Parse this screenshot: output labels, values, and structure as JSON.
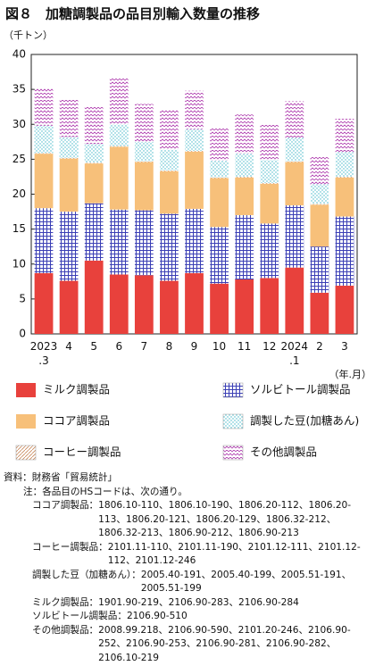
{
  "chart_data": {
    "type": "stacked-bar",
    "title": "図８　加糖調製品の品目別輸入数量の推移",
    "y_unit": "（千トン）",
    "x_unit": "（年.月）",
    "categories": [
      "2023\n.3",
      "4",
      "5",
      "6",
      "7",
      "8",
      "9",
      "10",
      "11",
      "12",
      "2024\n.1",
      "2",
      "3"
    ],
    "ylim": [
      0,
      40
    ],
    "yticks": [
      0,
      5,
      10,
      15,
      20,
      25,
      30,
      35,
      40
    ],
    "grid": false,
    "series": [
      {
        "name": "ミルク調製品",
        "color": "#e8413c",
        "pattern": "solid",
        "values": [
          8.7,
          7.6,
          10.5,
          8.5,
          8.4,
          7.6,
          8.7,
          7.2,
          7.8,
          8.0,
          9.5,
          5.9,
          6.9
        ]
      },
      {
        "name": "ソルビトール調製品",
        "color": "#3b3fb5",
        "pattern": "grid",
        "values": [
          9.3,
          9.9,
          8.2,
          9.3,
          9.3,
          9.6,
          9.2,
          8.1,
          9.2,
          7.8,
          8.9,
          6.6,
          9.9
        ]
      },
      {
        "name": "ココア調製品",
        "color": "#f7c07a",
        "pattern": "solid",
        "values": [
          7.8,
          7.6,
          5.7,
          9.0,
          6.9,
          6.1,
          8.2,
          7.0,
          5.4,
          5.7,
          6.2,
          6.0,
          5.6
        ]
      },
      {
        "name": "コーヒー調製品",
        "color": "#c8875a",
        "pattern": "hatch",
        "values": [
          0.1,
          0.1,
          0.1,
          0.1,
          0.1,
          0.1,
          0.1,
          0.1,
          0.1,
          0.1,
          0.1,
          0.1,
          0.1
        ]
      },
      {
        "name": "調製した豆(加糖あん)",
        "color": "#3fb6c8",
        "pattern": "dots",
        "values": [
          3.9,
          3.0,
          2.7,
          3.1,
          2.8,
          3.0,
          3.1,
          2.4,
          3.3,
          3.3,
          3.4,
          2.8,
          3.5
        ]
      },
      {
        "name": "その他調製品",
        "color": "#b040b0",
        "pattern": "zigzag",
        "values": [
          5.3,
          5.4,
          5.4,
          6.6,
          5.4,
          5.6,
          5.5,
          4.6,
          5.6,
          5.0,
          5.2,
          3.9,
          4.8
        ]
      }
    ]
  },
  "notes": {
    "source_label": "資料：",
    "source": "財務省「貿易統計」",
    "note_label": "注：",
    "note": "各品目のHSコードは、次の通り。",
    "codes": [
      {
        "label": "ココア調製品：",
        "text": "1806.10-110、1806.10-190、1806.20-112、1806.20-113、1806.20-121、1806.20-129、1806.32-212、1806.32-213、1806.90-212、1806.90-213"
      },
      {
        "label": "コーヒー調製品：",
        "text": "2101.11-110、2101.11-190、2101.12-111、2101.12-112、2101.12-246"
      },
      {
        "label": "調製した豆（加糖あん）：",
        "text": "2005.40-191、2005.40-199、2005.51-191、2005.51-199"
      },
      {
        "label": "ミルク調製品：",
        "text": "1901.90-219、2106.90-283、2106.90-284"
      },
      {
        "label": "ソルビトール調製品：",
        "text": "2106.90-510"
      },
      {
        "label": "その他調製品：",
        "text": "2008.99.218、2106.90-590、2101.20-246、2106.90-252、2106.90-253、2106.90-281、2106.90-282、2106.10-219"
      }
    ]
  }
}
